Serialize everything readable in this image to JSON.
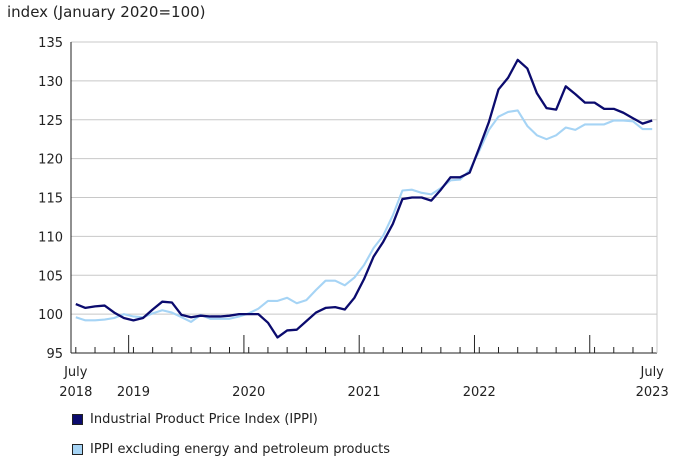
{
  "chart_data": {
    "type": "line",
    "ylabel": "index (January 2020=100)",
    "ylim": [
      95,
      135
    ],
    "yticks": [
      95,
      100,
      105,
      110,
      115,
      120,
      125,
      130,
      135
    ],
    "x_start": "2018-07",
    "x_end": "2023-07",
    "x_tick_labels": [
      {
        "month": "2018-07",
        "top": "July",
        "bottom": "2018"
      },
      {
        "month": "2019-01",
        "top": "",
        "bottom": "2019"
      },
      {
        "month": "2020-01",
        "top": "",
        "bottom": "2020"
      },
      {
        "month": "2021-01",
        "top": "",
        "bottom": "2021"
      },
      {
        "month": "2022-01",
        "top": "",
        "bottom": "2022"
      },
      {
        "month": "2023-07",
        "top": "July",
        "bottom": "2023"
      }
    ],
    "grid": true,
    "legend_position": "bottom-left",
    "series": [
      {
        "name": "Industrial Product Price Index (IPPI)",
        "color": "#0b0b6e",
        "values": [
          101.3,
          100.8,
          101.0,
          101.1,
          100.2,
          99.5,
          99.2,
          99.5,
          100.6,
          101.6,
          101.5,
          99.9,
          99.6,
          99.8,
          99.7,
          99.7,
          99.8,
          100.0,
          100.0,
          100.0,
          98.9,
          97.0,
          97.9,
          98.0,
          99.1,
          100.2,
          100.8,
          100.9,
          100.6,
          102.1,
          104.5,
          107.4,
          109.3,
          111.6,
          114.8,
          115.0,
          115.0,
          114.6,
          116.0,
          117.6,
          117.6,
          118.2,
          121.4,
          124.7,
          128.9,
          130.4,
          132.7,
          131.6,
          128.4,
          126.5,
          126.3,
          129.3,
          128.3,
          127.2,
          127.2,
          126.4,
          126.4,
          125.9,
          125.2,
          124.5,
          124.9
        ]
      },
      {
        "name": "IPPI excluding energy and petroleum products",
        "color": "#a6d4f5",
        "values": [
          99.6,
          99.2,
          99.2,
          99.3,
          99.5,
          100.0,
          99.7,
          99.6,
          100.1,
          100.5,
          100.2,
          99.6,
          99.0,
          99.9,
          99.4,
          99.4,
          99.4,
          99.7,
          100.1,
          100.7,
          101.7,
          101.7,
          102.1,
          101.4,
          101.8,
          103.1,
          104.3,
          104.3,
          103.7,
          104.7,
          106.3,
          108.5,
          110.1,
          112.7,
          115.9,
          116.0,
          115.6,
          115.4,
          116.2,
          117.2,
          117.3,
          118.5,
          121.0,
          123.7,
          125.4,
          126.0,
          126.2,
          124.2,
          123.0,
          122.5,
          123.0,
          124.0,
          123.7,
          124.4,
          124.4,
          124.4,
          124.9,
          124.9,
          124.8,
          123.8,
          123.8
        ]
      }
    ]
  }
}
